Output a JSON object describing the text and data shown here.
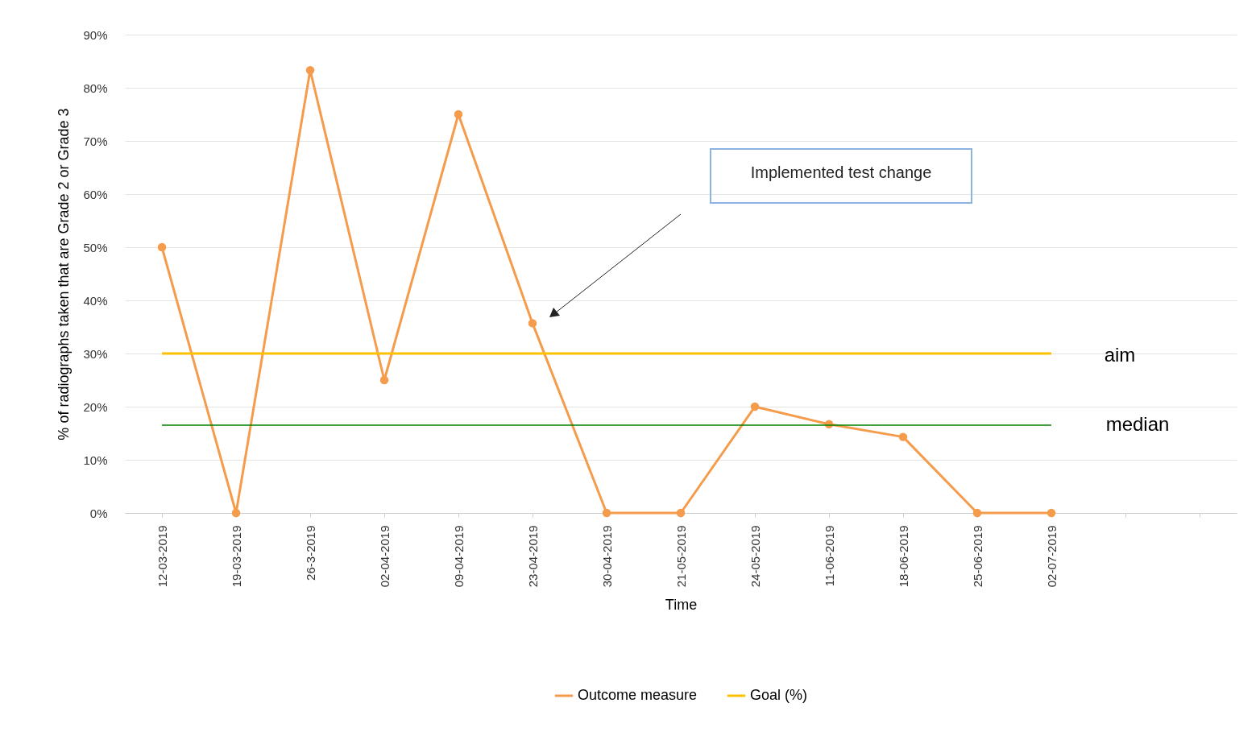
{
  "chart_data": {
    "type": "line",
    "xlabel": "Time",
    "ylabel": "% of radiographs taken that are Grade 2 or Grade 3",
    "categories": [
      "12-03-2019",
      "19-03-2019",
      "26-3-2019",
      "02-04-2019",
      "09-04-2019",
      "23-04-2019",
      "30-04-2019",
      "21-05-2019",
      "24-05-2019",
      "11-06-2019",
      "18-06-2019",
      "25-06-2019",
      "02-07-2019",
      null,
      null
    ],
    "series": [
      {
        "name": "Outcome measure",
        "color": "#f59b4c",
        "marker": "circle",
        "values": [
          50,
          0,
          83.3,
          25,
          75,
          35.7,
          0,
          0,
          20,
          16.7,
          14.3,
          0,
          0,
          null,
          null
        ]
      },
      {
        "name": "Goal (%)",
        "color": "#ffc000",
        "marker": "none",
        "values": [
          30,
          30,
          30,
          30,
          30,
          30,
          30,
          30,
          30,
          30,
          30,
          30,
          30,
          null,
          null
        ]
      }
    ],
    "ylim": [
      0,
      90
    ],
    "yticks": [
      {
        "value": 0,
        "label": "0%"
      },
      {
        "value": 10,
        "label": "10%"
      },
      {
        "value": 20,
        "label": "20%"
      },
      {
        "value": 30,
        "label": "30%"
      },
      {
        "value": 40,
        "label": "40%"
      },
      {
        "value": 50,
        "label": "50%"
      },
      {
        "value": 60,
        "label": "60%"
      },
      {
        "value": 70,
        "label": "70%"
      },
      {
        "value": 80,
        "label": "80%"
      },
      {
        "value": 90,
        "label": "90%"
      }
    ],
    "ref_lines": [
      {
        "axis": "y",
        "value": 16.5,
        "label": "median",
        "color": "#008000"
      }
    ],
    "annotations": [
      "Implemented test change",
      "aim"
    ],
    "grid": "y",
    "legend": "bottom",
    "line_style": "solid"
  }
}
